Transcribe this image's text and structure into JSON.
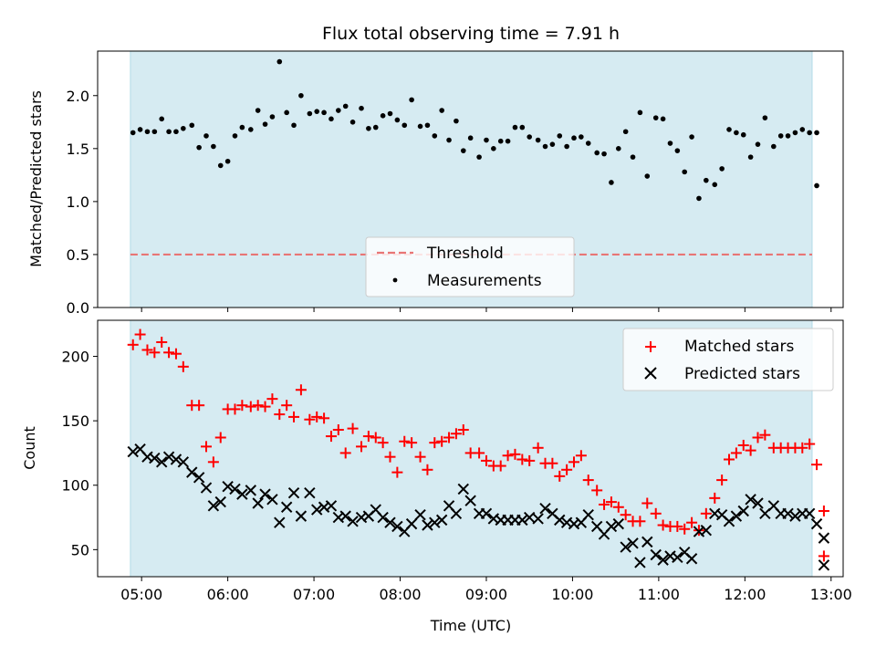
{
  "chart_data": [
    {
      "type": "scatter",
      "title": "Flux total observing time = 7.91 h",
      "ylabel": "Matched/Predicted stars",
      "xlabel": "",
      "xlim_hours": [
        4.49,
        13.14
      ],
      "ylim": [
        0,
        2.42
      ],
      "yticks": [
        0.0,
        0.5,
        1.0,
        1.5,
        2.0
      ],
      "ytick_labels": [
        "0.0",
        "0.5",
        "1.0",
        "1.5",
        "2.0"
      ],
      "shaded_span_hours": [
        4.87,
        12.78
      ],
      "shade_color": "#add8e6",
      "threshold": {
        "label": "Threshold",
        "value": 0.5,
        "color": "#e87575"
      },
      "legend_position": "lower center",
      "series": [
        {
          "name": "Measurements",
          "color": "#000000",
          "x": [
            "04:54",
            "04:59",
            "05:04",
            "05:09",
            "05:14",
            "05:19",
            "05:24",
            "05:29",
            "05:35",
            "05:40",
            "05:45",
            "05:50",
            "05:55",
            "06:00",
            "06:05",
            "06:10",
            "06:16",
            "06:21",
            "06:26",
            "06:31",
            "06:36",
            "06:41",
            "06:46",
            "06:51",
            "06:57",
            "07:02",
            "07:07",
            "07:12",
            "07:17",
            "07:22",
            "07:27",
            "07:33",
            "07:38",
            "07:43",
            "07:48",
            "07:53",
            "07:58",
            "08:03",
            "08:08",
            "08:14",
            "08:19",
            "08:24",
            "08:29",
            "08:34",
            "08:39",
            "08:44",
            "08:49",
            "08:55",
            "09:00",
            "09:05",
            "09:10",
            "09:15",
            "09:20",
            "09:25",
            "09:30",
            "09:36",
            "09:41",
            "09:46",
            "09:51",
            "09:56",
            "10:01",
            "10:06",
            "10:11",
            "10:17",
            "10:22",
            "10:27",
            "10:32",
            "10:37",
            "10:42",
            "10:47",
            "10:52",
            "10:58",
            "11:03",
            "11:08",
            "11:13",
            "11:18",
            "11:23",
            "11:28",
            "11:33",
            "11:39",
            "11:44",
            "11:49",
            "11:54",
            "11:59",
            "12:04",
            "12:09",
            "12:14",
            "12:20",
            "12:25",
            "12:30",
            "12:35",
            "12:40",
            "12:45",
            "12:50"
          ],
          "y": [
            1.65,
            1.68,
            1.66,
            1.66,
            1.78,
            1.66,
            1.66,
            1.69,
            1.72,
            1.51,
            1.62,
            1.52,
            1.34,
            1.38,
            1.62,
            1.7,
            1.68,
            1.86,
            1.73,
            1.8,
            2.32,
            1.84,
            1.72,
            2.0,
            1.83,
            1.85,
            1.84,
            1.78,
            1.86,
            1.9,
            1.75,
            1.88,
            1.69,
            1.7,
            1.81,
            1.83,
            1.77,
            1.72,
            1.96,
            1.71,
            1.72,
            1.62,
            1.86,
            1.58,
            1.76,
            1.48,
            1.6,
            1.42,
            1.58,
            1.5,
            1.57,
            1.57,
            1.7,
            1.7,
            1.61,
            1.58,
            1.52,
            1.54,
            1.62,
            1.52,
            1.6,
            1.61,
            1.55,
            1.46,
            1.45,
            1.18,
            1.5,
            1.66,
            1.42,
            1.84,
            1.24,
            1.79,
            1.78,
            1.55,
            1.48,
            1.28,
            1.61,
            1.03,
            1.2,
            1.16,
            1.31,
            1.68,
            1.65,
            1.63,
            1.42,
            1.54,
            1.79,
            1.52,
            1.62,
            1.62,
            1.65,
            1.68,
            1.65,
            1.65
          ]
        },
        {
          "name": "",
          "color": "#000000",
          "x": [
            "12:50"
          ],
          "y": [
            1.15
          ]
        }
      ]
    },
    {
      "type": "scatter",
      "title": "",
      "ylabel": "Count",
      "xlabel": "Time (UTC)",
      "xlim_hours": [
        4.49,
        13.14
      ],
      "ylim": [
        29,
        228
      ],
      "yticks": [
        50,
        100,
        150,
        200
      ],
      "ytick_labels": [
        "50",
        "100",
        "150",
        "200"
      ],
      "xtick_labels": [
        "05:00",
        "06:00",
        "07:00",
        "08:00",
        "09:00",
        "10:00",
        "11:00",
        "12:00",
        "13:00"
      ],
      "shaded_span_hours": [
        4.87,
        12.78
      ],
      "shade_color": "#add8e6",
      "legend_position": "upper right",
      "series": [
        {
          "name": "Matched stars",
          "marker": "plus",
          "color": "#ff0000",
          "x": [
            "04:54",
            "04:59",
            "05:04",
            "05:09",
            "05:14",
            "05:19",
            "05:24",
            "05:29",
            "05:35",
            "05:40",
            "05:45",
            "05:50",
            "05:55",
            "06:00",
            "06:05",
            "06:10",
            "06:16",
            "06:21",
            "06:26",
            "06:31",
            "06:36",
            "06:41",
            "06:46",
            "06:51",
            "06:57",
            "07:02",
            "07:07",
            "07:12",
            "07:17",
            "07:22",
            "07:27",
            "07:33",
            "07:38",
            "07:43",
            "07:48",
            "07:53",
            "07:58",
            "08:03",
            "08:08",
            "08:14",
            "08:19",
            "08:24",
            "08:29",
            "08:34",
            "08:39",
            "08:44",
            "08:49",
            "08:55",
            "09:00",
            "09:05",
            "09:10",
            "09:15",
            "09:20",
            "09:25",
            "09:30",
            "09:36",
            "09:41",
            "09:46",
            "09:51",
            "09:56",
            "10:01",
            "10:06",
            "10:11",
            "10:17",
            "10:22",
            "10:27",
            "10:32",
            "10:37",
            "10:42",
            "10:47",
            "10:52",
            "10:58",
            "11:03",
            "11:08",
            "11:13",
            "11:18",
            "11:23",
            "11:28",
            "11:33",
            "11:39",
            "11:44",
            "11:49",
            "11:54",
            "11:59",
            "12:04",
            "12:09",
            "12:14",
            "12:20",
            "12:25",
            "12:30",
            "12:35",
            "12:40",
            "12:45",
            "12:50",
            "12:55"
          ],
          "y": [
            209,
            217,
            205,
            203,
            211,
            203,
            202,
            192,
            162,
            162,
            130,
            118,
            137,
            159,
            159,
            162,
            161,
            162,
            161,
            167,
            155,
            162,
            153,
            174,
            151,
            153,
            152,
            138,
            143,
            125,
            144,
            130,
            138,
            137,
            133,
            122,
            110,
            134,
            133,
            122,
            112,
            133,
            134,
            137,
            140,
            143,
            125,
            125,
            119,
            115,
            115,
            123,
            124,
            120,
            119,
            129,
            117,
            117,
            107,
            112,
            118,
            123,
            104,
            96,
            85,
            87,
            83,
            77,
            72,
            72,
            86,
            78,
            69,
            68,
            68,
            66,
            71,
            65,
            78,
            90,
            104,
            120,
            125,
            131,
            127,
            137,
            139,
            129,
            129,
            129,
            129,
            129,
            132,
            116,
            80
          ]
        },
        {
          "name": "",
          "color": "#ff0000",
          "x": [
            "12:55"
          ],
          "y": [
            45
          ]
        },
        {
          "name": "Predicted stars",
          "marker": "x",
          "color": "#000000",
          "x": [
            "04:54",
            "04:59",
            "05:04",
            "05:09",
            "05:14",
            "05:19",
            "05:24",
            "05:29",
            "05:35",
            "05:40",
            "05:45",
            "05:50",
            "05:55",
            "06:00",
            "06:05",
            "06:10",
            "06:16",
            "06:21",
            "06:26",
            "06:31",
            "06:36",
            "06:41",
            "06:46",
            "06:51",
            "06:57",
            "07:02",
            "07:07",
            "07:12",
            "07:17",
            "07:22",
            "07:27",
            "07:33",
            "07:38",
            "07:43",
            "07:48",
            "07:53",
            "07:58",
            "08:03",
            "08:08",
            "08:14",
            "08:19",
            "08:24",
            "08:29",
            "08:34",
            "08:39",
            "08:44",
            "08:49",
            "08:55",
            "09:00",
            "09:05",
            "09:10",
            "09:15",
            "09:20",
            "09:25",
            "09:30",
            "09:36",
            "09:41",
            "09:46",
            "09:51",
            "09:56",
            "10:01",
            "10:06",
            "10:11",
            "10:17",
            "10:22",
            "10:27",
            "10:32",
            "10:37",
            "10:42",
            "10:47",
            "10:52",
            "10:58",
            "11:03",
            "11:08",
            "11:13",
            "11:18",
            "11:23",
            "11:28",
            "11:33",
            "11:39",
            "11:44",
            "11:49",
            "11:54",
            "11:59",
            "12:04",
            "12:09",
            "12:14",
            "12:20",
            "12:25",
            "12:30",
            "12:35",
            "12:40",
            "12:45",
            "12:50",
            "12:55"
          ],
          "y": [
            126,
            128,
            122,
            121,
            118,
            122,
            120,
            118,
            110,
            106,
            98,
            84,
            87,
            99,
            97,
            93,
            96,
            86,
            93,
            89,
            71,
            83,
            94,
            76,
            94,
            81,
            83,
            84,
            75,
            76,
            72,
            75,
            76,
            81,
            75,
            71,
            68,
            64,
            70,
            77,
            69,
            71,
            73,
            84,
            78,
            97,
            88,
            78,
            78,
            74,
            73,
            73,
            73,
            73,
            75,
            74,
            82,
            78,
            73,
            71,
            70,
            71,
            77,
            68,
            62,
            68,
            70,
            52,
            55,
            40,
            56,
            46,
            42,
            45,
            44,
            48,
            43,
            64,
            65,
            78,
            77,
            72,
            76,
            80,
            89,
            86,
            78,
            84,
            78,
            78,
            76,
            78,
            78,
            70,
            59
          ]
        },
        {
          "name": "",
          "color": "#000000",
          "x": [
            "12:55"
          ],
          "y": [
            38
          ]
        }
      ]
    }
  ]
}
